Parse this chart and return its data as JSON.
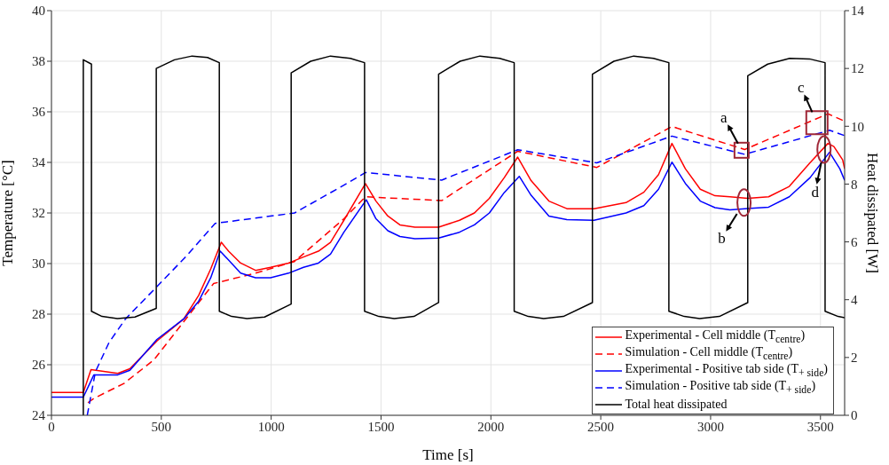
{
  "chart_data": {
    "type": "line",
    "xlabel": "Time [s]",
    "ylabel": "Temperature [°C]",
    "y2label": "Heat dissipated [W]",
    "xlim": [
      0,
      3610
    ],
    "xticks": [
      0,
      500,
      1000,
      1500,
      2000,
      2500,
      3000,
      3500
    ],
    "ylim": [
      24,
      40
    ],
    "yticks": [
      24,
      26,
      28,
      30,
      32,
      34,
      36,
      38,
      40
    ],
    "y2lim": [
      0,
      14
    ],
    "y2ticks": [
      0,
      2,
      4,
      6,
      8,
      10,
      12,
      14
    ],
    "grid": true,
    "legend": "bottom right",
    "series": [
      {
        "name": "Experimental - Cell middle (T$_{centre}$)",
        "color": "#ff0000",
        "line_style": "solid",
        "x": [
          0,
          145,
          180,
          302,
          357,
          480,
          602,
          670,
          725,
          773,
          806,
          861,
          929,
          997,
          1079,
          1147,
          1215,
          1270,
          1331,
          1429,
          1477,
          1531,
          1586,
          1654,
          1762,
          1857,
          1925,
          1993,
          2061,
          2122,
          2183,
          2264,
          2346,
          2469,
          2615,
          2696,
          2763,
          2824,
          2885,
          2953,
          3020,
          3088,
          3169,
          3264,
          3358,
          3453,
          3534,
          3561,
          3601,
          3610
        ],
        "values": [
          24.9,
          24.9,
          25.81,
          25.66,
          25.84,
          26.94,
          27.81,
          28.74,
          29.79,
          30.84,
          30.49,
          30.02,
          29.73,
          29.85,
          30.02,
          30.26,
          30.49,
          30.84,
          31.71,
          33.16,
          32.47,
          31.88,
          31.53,
          31.44,
          31.44,
          31.71,
          32.0,
          32.58,
          33.4,
          34.21,
          33.28,
          32.47,
          32.17,
          32.17,
          32.41,
          32.82,
          33.52,
          34.75,
          33.75,
          32.94,
          32.68,
          32.64,
          32.58,
          32.64,
          33.05,
          33.99,
          34.75,
          34.63,
          34.1,
          33.75
        ]
      },
      {
        "name": "Simulation - Cell middle (T$_{centre}$)",
        "color": "#ff0000",
        "line_style": "dashed",
        "x": [
          166,
          193,
          330,
          466,
          602,
          738,
          929,
          1106,
          1331,
          1429,
          1776,
          2122,
          2482,
          2824,
          3155,
          3534,
          3610
        ],
        "values": [
          24.5,
          24.67,
          25.26,
          26.19,
          27.7,
          29.21,
          29.62,
          30.08,
          31.77,
          32.64,
          32.49,
          34.44,
          33.8,
          35.42,
          34.51,
          35.92,
          35.63
        ]
      },
      {
        "name": "Experimental - Positive tab side (T$_{+ side}$)",
        "color": "#0000ff",
        "line_style": "solid",
        "x": [
          0,
          145,
          193,
          302,
          357,
          480,
          602,
          670,
          725,
          768,
          806,
          861,
          929,
          997,
          1079,
          1147,
          1215,
          1270,
          1331,
          1433,
          1477,
          1531,
          1586,
          1654,
          1762,
          1857,
          1925,
          1993,
          2061,
          2129,
          2183,
          2264,
          2346,
          2469,
          2615,
          2696,
          2763,
          2824,
          2885,
          2953,
          3020,
          3088,
          3183,
          3264,
          3358,
          3453,
          3541,
          3588,
          3610
        ],
        "values": [
          24.72,
          24.72,
          25.6,
          25.6,
          25.78,
          27.0,
          27.81,
          28.51,
          29.44,
          30.49,
          30.14,
          29.62,
          29.44,
          29.44,
          29.62,
          29.85,
          30.02,
          30.37,
          31.24,
          32.52,
          31.77,
          31.3,
          31.07,
          30.98,
          31.01,
          31.24,
          31.53,
          32.0,
          32.81,
          33.45,
          32.7,
          31.88,
          31.74,
          31.71,
          32.0,
          32.29,
          32.94,
          34.01,
          33.17,
          32.47,
          32.21,
          32.12,
          32.18,
          32.23,
          32.64,
          33.4,
          34.4,
          33.75,
          33.29
        ]
      },
      {
        "name": "Simulation - Positive tab side (T$_{+ side}$)",
        "color": "#0000ff",
        "line_style": "dashed",
        "x": [
          163,
          200,
          262,
          337,
          480,
          616,
          745,
          1106,
          1331,
          1429,
          1776,
          2122,
          2482,
          2824,
          3155,
          3541,
          3610
        ],
        "values": [
          24.0,
          25.72,
          26.88,
          27.81,
          29.09,
          30.31,
          31.59,
          32.0,
          33.1,
          33.6,
          33.3,
          34.5,
          33.98,
          35.04,
          34.32,
          35.27,
          35.06
        ]
      },
      {
        "name": "Total heat dissipated",
        "color": "#000000",
        "line_style": "solid",
        "axis": "y2",
        "x": [
          145,
          145,
          182,
          182,
          230,
          300,
          380,
          477,
          477,
          560,
          640,
          710,
          764,
          764,
          820,
          890,
          970,
          1091,
          1091,
          1180,
          1270,
          1360,
          1425,
          1425,
          1490,
          1560,
          1650,
          1762,
          1762,
          1860,
          1950,
          2040,
          2106,
          2106,
          2170,
          2240,
          2330,
          2462,
          2462,
          2560,
          2650,
          2740,
          2810,
          2810,
          2880,
          2950,
          3040,
          3169,
          3169,
          3260,
          3360,
          3450,
          3521,
          3521,
          3580,
          3610
        ],
        "values": [
          0,
          12.3,
          12.15,
          3.6,
          3.42,
          3.35,
          3.4,
          3.7,
          12.0,
          12.3,
          12.43,
          12.38,
          12.2,
          3.6,
          3.42,
          3.35,
          3.4,
          3.85,
          11.85,
          12.25,
          12.43,
          12.35,
          12.2,
          3.6,
          3.42,
          3.35,
          3.42,
          3.9,
          11.8,
          12.25,
          12.43,
          12.35,
          12.2,
          3.6,
          3.42,
          3.35,
          3.42,
          3.9,
          11.8,
          12.25,
          12.43,
          12.35,
          12.2,
          3.6,
          3.42,
          3.35,
          3.42,
          3.9,
          11.75,
          12.15,
          12.35,
          12.33,
          12.2,
          3.6,
          3.42,
          3.38
        ]
      }
    ],
    "annotations": [
      {
        "text": "a",
        "x": 3141,
        "y": 34.48
      },
      {
        "text": "b",
        "x": 3152,
        "y": 32.41
      },
      {
        "text": "c",
        "x": 3484,
        "y": 35.57
      },
      {
        "text": "d",
        "x": 3516,
        "y": 34.51
      }
    ]
  }
}
